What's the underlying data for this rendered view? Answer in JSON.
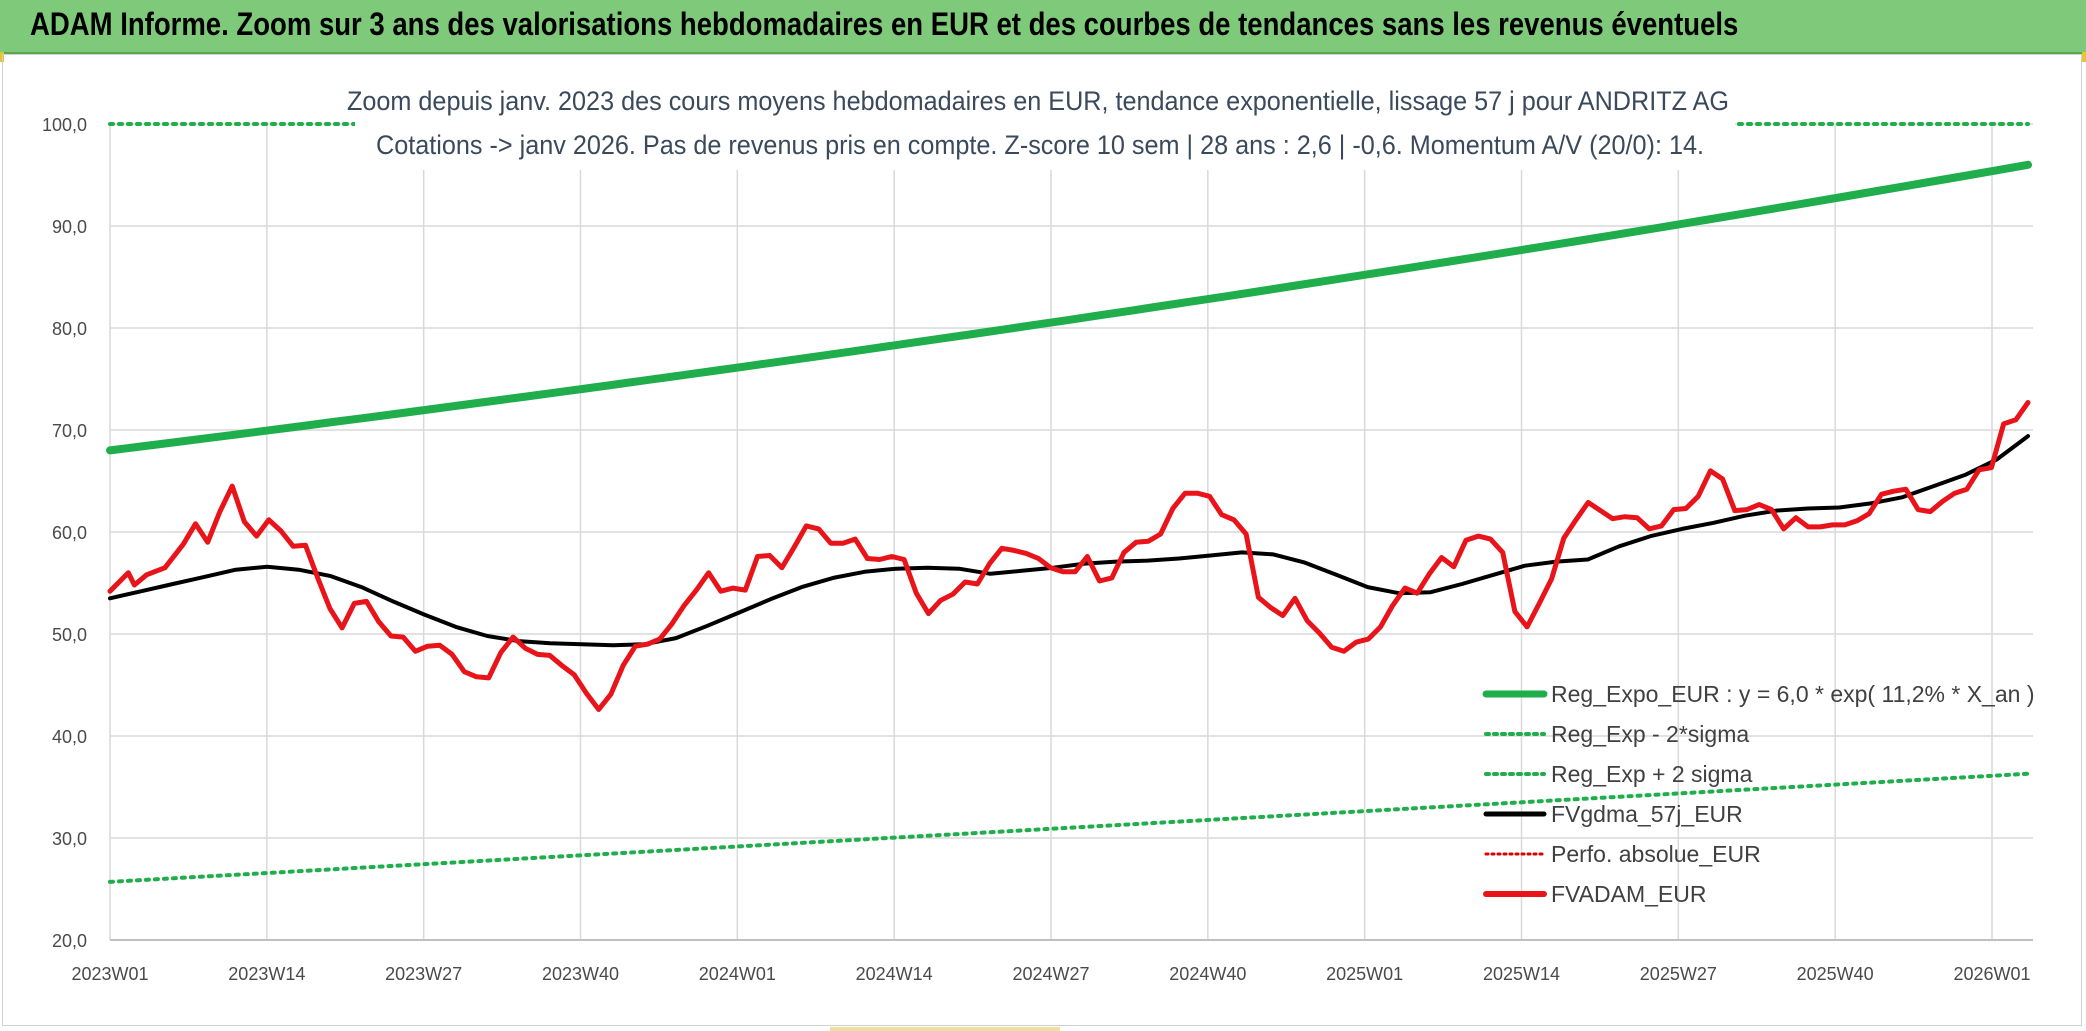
{
  "header": {
    "title": "ADAM Informe. Zoom sur 3 ans des valorisations hebdomadaires en EUR et des courbes de tendances sans les revenus éventuels"
  },
  "colors": {
    "banner": "#7fc97a",
    "trend": "#1fae4b",
    "band": "#1fae4b",
    "fvgdma": "#000000",
    "perfo": "#e00000",
    "fvadam": "#e8141a",
    "grid": "#d9d9d9"
  },
  "chart_data": {
    "type": "line",
    "title_line1": "Zoom depuis janv. 2023 des cours moyens hebdomadaires en EUR, tendance exponentielle, lissage 57 j pour ANDRITZ AG",
    "title_line2": "Cotations -> janv 2026. Pas de revenus pris en compte. Z-score 10 sem | 28 ans : 2,6 | -0,6. Momentum A/V (20/0): 14.",
    "ylim": [
      20,
      100
    ],
    "yticks": [
      "20,0",
      "30,0",
      "40,0",
      "50,0",
      "60,0",
      "70,0",
      "80,0",
      "90,0",
      "100,0"
    ],
    "ytick_values": [
      20,
      30,
      40,
      50,
      60,
      70,
      80,
      90,
      100
    ],
    "xticks": [
      "2023W01",
      "2023W14",
      "2023W27",
      "2023W40",
      "2024W01",
      "2024W14",
      "2024W27",
      "2024W40",
      "2025W01",
      "2025W14",
      "2025W27",
      "2025W40",
      "2026W01"
    ],
    "xtick_index": [
      0,
      13,
      26,
      39,
      52,
      65,
      78,
      91,
      104,
      117,
      130,
      143,
      156
    ],
    "n_weeks": 162,
    "series": [
      {
        "name": "Reg_Expo_EUR : y = 6,0 * exp( 11,2% *  X_an )",
        "kind": "trend",
        "start": 68.0,
        "end": 96.0
      },
      {
        "name": "Reg_Exp - 2*sigma",
        "kind": "band",
        "start": 25.7,
        "end": 36.3
      },
      {
        "name": "Reg_Exp + 2 sigma",
        "kind": "band",
        "start": 100.0,
        "end": 100.0
      },
      {
        "name": "FVgdma_57j_EUR",
        "kind": "smooth",
        "points": [
          [
            0,
            53.5
          ],
          [
            3,
            54.2
          ],
          [
            6,
            54.9
          ],
          [
            9,
            55.6
          ],
          [
            12,
            56.3
          ],
          [
            15,
            56.6
          ],
          [
            18,
            56.3
          ],
          [
            21,
            55.7
          ],
          [
            24,
            54.6
          ],
          [
            27,
            53.2
          ],
          [
            30,
            51.9
          ],
          [
            33,
            50.7
          ],
          [
            36,
            49.8
          ],
          [
            39,
            49.3
          ],
          [
            42,
            49.1
          ],
          [
            45,
            49.0
          ],
          [
            48,
            48.9
          ],
          [
            51,
            49.0
          ],
          [
            54,
            49.6
          ],
          [
            57,
            50.8
          ],
          [
            60,
            52.1
          ],
          [
            63,
            53.4
          ],
          [
            66,
            54.6
          ],
          [
            69,
            55.5
          ],
          [
            72,
            56.1
          ],
          [
            75,
            56.4
          ],
          [
            78,
            56.5
          ],
          [
            81,
            56.4
          ],
          [
            84,
            55.9
          ],
          [
            87,
            56.2
          ],
          [
            90,
            56.5
          ],
          [
            93,
            56.9
          ],
          [
            96,
            57.1
          ],
          [
            99,
            57.2
          ],
          [
            102,
            57.4
          ],
          [
            105,
            57.7
          ],
          [
            108,
            58.0
          ],
          [
            111,
            57.8
          ],
          [
            114,
            57.0
          ],
          [
            117,
            55.8
          ],
          [
            120,
            54.6
          ],
          [
            123,
            54.0
          ],
          [
            126,
            54.1
          ],
          [
            129,
            54.9
          ],
          [
            132,
            55.8
          ],
          [
            135,
            56.7
          ],
          [
            138,
            57.1
          ],
          [
            141,
            57.3
          ],
          [
            144,
            58.6
          ],
          [
            147,
            59.6
          ],
          [
            150,
            60.3
          ],
          [
            153,
            60.9
          ],
          [
            156,
            61.6
          ],
          [
            159,
            62.1
          ],
          [
            162,
            62.3
          ],
          [
            165,
            62.4
          ],
          [
            168,
            62.8
          ],
          [
            171,
            63.4
          ],
          [
            174,
            64.5
          ],
          [
            177,
            65.6
          ],
          [
            180,
            67.1
          ],
          [
            183,
            69.4
          ]
        ]
      },
      {
        "name": "Perfo. absolue_EUR",
        "kind": "hidden"
      },
      {
        "name": "FVADAM_EUR",
        "kind": "price",
        "points": [
          [
            0,
            54.2
          ],
          [
            3,
            56.0
          ],
          [
            4,
            54.8
          ],
          [
            6,
            55.8
          ],
          [
            9,
            56.5
          ],
          [
            12,
            58.8
          ],
          [
            14,
            60.8
          ],
          [
            16,
            59.0
          ],
          [
            18,
            62.0
          ],
          [
            20,
            64.5
          ],
          [
            22,
            61.0
          ],
          [
            24,
            59.6
          ],
          [
            26,
            61.2
          ],
          [
            28,
            60.1
          ],
          [
            30,
            58.6
          ],
          [
            32,
            58.7
          ],
          [
            34,
            55.5
          ],
          [
            36,
            52.5
          ],
          [
            38,
            50.6
          ],
          [
            40,
            53.0
          ],
          [
            42,
            53.2
          ],
          [
            44,
            51.2
          ],
          [
            46,
            49.8
          ],
          [
            48,
            49.7
          ],
          [
            50,
            48.3
          ],
          [
            52,
            48.8
          ],
          [
            54,
            48.9
          ],
          [
            56,
            48.0
          ],
          [
            58,
            46.3
          ],
          [
            60,
            45.8
          ],
          [
            62,
            45.7
          ],
          [
            64,
            48.2
          ],
          [
            66,
            49.7
          ],
          [
            68,
            48.6
          ],
          [
            70,
            48.0
          ],
          [
            72,
            47.9
          ],
          [
            74,
            46.9
          ],
          [
            76,
            46.0
          ],
          [
            78,
            44.2
          ],
          [
            80,
            42.6
          ],
          [
            82,
            44.1
          ],
          [
            84,
            46.9
          ],
          [
            86,
            48.8
          ],
          [
            88,
            49.0
          ],
          [
            90,
            49.5
          ],
          [
            92,
            51.0
          ],
          [
            94,
            52.8
          ],
          [
            96,
            54.3
          ],
          [
            98,
            56.0
          ],
          [
            100,
            54.2
          ],
          [
            102,
            54.5
          ],
          [
            104,
            54.3
          ],
          [
            106,
            57.6
          ],
          [
            108,
            57.7
          ],
          [
            110,
            56.5
          ],
          [
            112,
            58.5
          ],
          [
            114,
            60.6
          ],
          [
            116,
            60.3
          ],
          [
            118,
            58.9
          ],
          [
            120,
            58.9
          ],
          [
            122,
            59.3
          ],
          [
            124,
            57.4
          ],
          [
            126,
            57.3
          ],
          [
            128,
            57.6
          ],
          [
            130,
            57.3
          ],
          [
            132,
            54.0
          ],
          [
            134,
            52.0
          ],
          [
            136,
            53.3
          ],
          [
            138,
            53.9
          ],
          [
            140,
            55.1
          ],
          [
            142,
            54.9
          ],
          [
            144,
            56.9
          ],
          [
            146,
            58.4
          ],
          [
            148,
            58.2
          ],
          [
            150,
            57.9
          ],
          [
            152,
            57.4
          ],
          [
            154,
            56.5
          ],
          [
            156,
            56.1
          ],
          [
            158,
            56.1
          ],
          [
            160,
            57.6
          ],
          [
            162,
            55.2
          ],
          [
            164,
            55.5
          ],
          [
            166,
            58.0
          ],
          [
            168,
            59.0
          ],
          [
            170,
            59.1
          ],
          [
            172,
            59.8
          ],
          [
            174,
            62.3
          ],
          [
            176,
            63.8
          ],
          [
            178,
            63.8
          ],
          [
            180,
            63.5
          ],
          [
            182,
            61.7
          ],
          [
            184,
            61.2
          ],
          [
            186,
            59.8
          ],
          [
            188,
            53.6
          ],
          [
            190,
            52.6
          ],
          [
            192,
            51.8
          ],
          [
            194,
            53.5
          ],
          [
            196,
            51.3
          ],
          [
            198,
            50.1
          ],
          [
            200,
            48.7
          ],
          [
            202,
            48.3
          ],
          [
            204,
            49.2
          ],
          [
            206,
            49.5
          ],
          [
            208,
            50.7
          ],
          [
            210,
            52.8
          ],
          [
            212,
            54.5
          ],
          [
            214,
            54.0
          ],
          [
            216,
            55.9
          ],
          [
            218,
            57.5
          ],
          [
            220,
            56.6
          ],
          [
            222,
            59.2
          ],
          [
            224,
            59.6
          ],
          [
            226,
            59.3
          ],
          [
            228,
            58.0
          ],
          [
            230,
            52.2
          ],
          [
            232,
            50.7
          ],
          [
            234,
            53.0
          ],
          [
            236,
            55.4
          ],
          [
            238,
            59.4
          ],
          [
            240,
            61.2
          ],
          [
            242,
            62.9
          ],
          [
            244,
            62.1
          ],
          [
            246,
            61.3
          ],
          [
            248,
            61.5
          ],
          [
            250,
            61.4
          ],
          [
            252,
            60.3
          ],
          [
            254,
            60.6
          ],
          [
            256,
            62.2
          ],
          [
            258,
            62.3
          ],
          [
            260,
            63.5
          ],
          [
            262,
            66.0
          ],
          [
            264,
            65.2
          ],
          [
            266,
            62.1
          ],
          [
            268,
            62.2
          ],
          [
            270,
            62.7
          ],
          [
            272,
            62.2
          ],
          [
            274,
            60.3
          ],
          [
            276,
            61.4
          ],
          [
            278,
            60.5
          ],
          [
            280,
            60.5
          ],
          [
            282,
            60.7
          ],
          [
            284,
            60.7
          ],
          [
            286,
            61.1
          ],
          [
            288,
            61.8
          ],
          [
            290,
            63.7
          ],
          [
            292,
            64.0
          ],
          [
            294,
            64.2
          ],
          [
            296,
            62.2
          ],
          [
            298,
            62.0
          ],
          [
            300,
            63.0
          ],
          [
            302,
            63.8
          ],
          [
            304,
            64.2
          ],
          [
            306,
            66.1
          ],
          [
            308,
            66.3
          ],
          [
            310,
            70.6
          ],
          [
            312,
            71.0
          ],
          [
            314,
            72.7
          ]
        ]
      }
    ]
  }
}
